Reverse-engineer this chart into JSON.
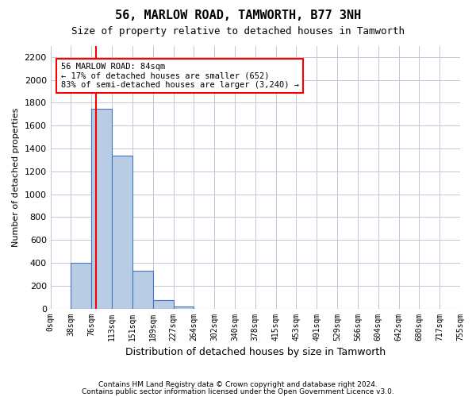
{
  "title": "56, MARLOW ROAD, TAMWORTH, B77 3NH",
  "subtitle": "Size of property relative to detached houses in Tamworth",
  "xlabel": "Distribution of detached houses by size in Tamworth",
  "ylabel": "Number of detached properties",
  "footer_line1": "Contains HM Land Registry data © Crown copyright and database right 2024.",
  "footer_line2": "Contains public sector information licensed under the Open Government Licence v3.0.",
  "bin_labels": [
    "0sqm",
    "38sqm",
    "76sqm",
    "113sqm",
    "151sqm",
    "189sqm",
    "227sqm",
    "264sqm",
    "302sqm",
    "340sqm",
    "378sqm",
    "415sqm",
    "453sqm",
    "491sqm",
    "529sqm",
    "566sqm",
    "604sqm",
    "642sqm",
    "680sqm",
    "717sqm",
    "755sqm"
  ],
  "bar_values": [
    0,
    400,
    1750,
    1340,
    330,
    75,
    20,
    0,
    0,
    0,
    0,
    0,
    0,
    0,
    0,
    0,
    0,
    0,
    0,
    0
  ],
  "bar_color": "#b8cce4",
  "bar_edge_color": "#4472c4",
  "annotation_text": "56 MARLOW ROAD: 84sqm\n← 17% of detached houses are smaller (652)\n83% of semi-detached houses are larger (3,240) →",
  "ylim": [
    0,
    2300
  ],
  "yticks": [
    0,
    200,
    400,
    600,
    800,
    1000,
    1200,
    1400,
    1600,
    1800,
    2000,
    2200
  ],
  "background_color": "#ffffff",
  "grid_color": "#c0c8d8",
  "property_sqm": 84,
  "bin_edges": [
    0,
    38,
    76,
    113,
    151,
    189,
    227,
    264,
    302,
    340,
    378,
    415,
    453,
    491,
    529,
    566,
    604,
    642,
    680,
    717,
    755
  ]
}
